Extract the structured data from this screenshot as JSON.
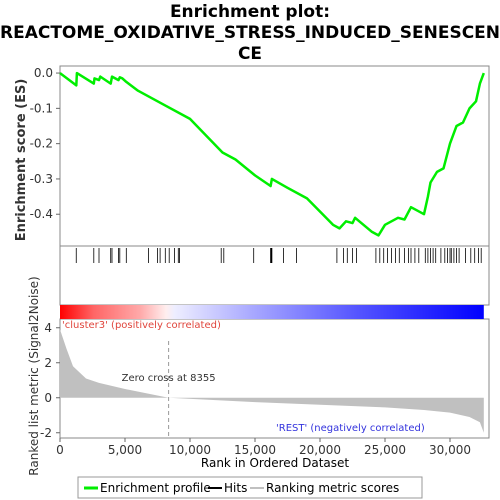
{
  "chart_data": {
    "type": "line",
    "title_lines": [
      "Enrichment plot:",
      "REACTOME_OXIDATIVE_STRESS_INDUCED_SENESCEN",
      "CE"
    ],
    "ylabel_top": "Enrichment score (ES)",
    "ylabel_bottom": "Ranked list metric (Signal2Noise)",
    "xlabel": "Rank in Ordered Dataset",
    "xlim": [
      0,
      33000
    ],
    "x_ticks": [
      0,
      5000,
      10000,
      15000,
      20000,
      25000,
      30000
    ],
    "x_tick_labels": [
      "0",
      "5,000",
      "10,000",
      "15,000",
      "20,000",
      "25,000",
      "30,000"
    ],
    "es_ylim": [
      -0.49,
      0.02
    ],
    "es_ticks": [
      0.0,
      -0.1,
      -0.2,
      -0.3,
      -0.4
    ],
    "es_tick_labels": [
      "0.0",
      "-0.1",
      "-0.2",
      "-0.3",
      "-0.4"
    ],
    "metric_ylim": [
      -2.3,
      4.5
    ],
    "metric_ticks": [
      4,
      2,
      0,
      -2
    ],
    "metric_tick_labels": [
      "4",
      "2",
      "0",
      "-2"
    ],
    "enrichment_profile": [
      [
        0,
        0.0
      ],
      [
        1250,
        -0.035
      ],
      [
        1300,
        0.0
      ],
      [
        2600,
        -0.03
      ],
      [
        2650,
        -0.015
      ],
      [
        3000,
        -0.02
      ],
      [
        3100,
        -0.01
      ],
      [
        3900,
        -0.03
      ],
      [
        4000,
        -0.01
      ],
      [
        4500,
        -0.02
      ],
      [
        4600,
        -0.012
      ],
      [
        4800,
        -0.015
      ],
      [
        5100,
        -0.025
      ],
      [
        6000,
        -0.05
      ],
      [
        8000,
        -0.09
      ],
      [
        10000,
        -0.13
      ],
      [
        12500,
        -0.225
      ],
      [
        13500,
        -0.245
      ],
      [
        15000,
        -0.29
      ],
      [
        16200,
        -0.32
      ],
      [
        16300,
        -0.3
      ],
      [
        17500,
        -0.325
      ],
      [
        19000,
        -0.355
      ],
      [
        21000,
        -0.43
      ],
      [
        21500,
        -0.44
      ],
      [
        22000,
        -0.42
      ],
      [
        22500,
        -0.425
      ],
      [
        22700,
        -0.41
      ],
      [
        24000,
        -0.45
      ],
      [
        24500,
        -0.46
      ],
      [
        25000,
        -0.43
      ],
      [
        26000,
        -0.41
      ],
      [
        26500,
        -0.415
      ],
      [
        27000,
        -0.38
      ],
      [
        28000,
        -0.4
      ],
      [
        28300,
        -0.35
      ],
      [
        28500,
        -0.31
      ],
      [
        29000,
        -0.28
      ],
      [
        29500,
        -0.27
      ],
      [
        30000,
        -0.2
      ],
      [
        30500,
        -0.15
      ],
      [
        31000,
        -0.14
      ],
      [
        31500,
        -0.1
      ],
      [
        32000,
        -0.08
      ],
      [
        32300,
        -0.03
      ],
      [
        32600,
        0.0
      ]
    ],
    "hit_ranks": [
      1250,
      2600,
      3000,
      3900,
      4000,
      4500,
      4600,
      5100,
      6800,
      7500,
      7700,
      8100,
      8400,
      8800,
      9100,
      9200,
      12400,
      12600,
      14900,
      16200,
      16250,
      16300,
      17200,
      18200,
      21300,
      21800,
      22100,
      22500,
      22800,
      24300,
      24600,
      24900,
      25200,
      25500,
      25800,
      26100,
      26500,
      26800,
      27000,
      27300,
      27600,
      28100,
      28300,
      28500,
      28700,
      28900,
      29300,
      29600,
      29800,
      30000,
      30100,
      30300,
      30500,
      30700,
      31200,
      31600,
      31900,
      32200,
      32400
    ],
    "ranking_metric_curve": [
      [
        0,
        3.9
      ],
      [
        500,
        2.8
      ],
      [
        1000,
        1.8
      ],
      [
        2000,
        1.1
      ],
      [
        3000,
        0.85
      ],
      [
        5000,
        0.5
      ],
      [
        8355,
        0.0
      ],
      [
        15000,
        -0.25
      ],
      [
        20000,
        -0.4
      ],
      [
        25000,
        -0.55
      ],
      [
        28000,
        -0.7
      ],
      [
        30000,
        -0.85
      ],
      [
        31500,
        -1.1
      ],
      [
        32300,
        -1.4
      ],
      [
        32600,
        -2.0
      ]
    ],
    "zero_cross_rank": 8355,
    "zero_cross_label": "Zero cross at 8355",
    "pos_label": "'cluster3' (positively correlated)",
    "neg_label": "'REST' (negatively correlated)",
    "legend": [
      "Enrichment profile",
      "Hits",
      "Ranking metric scores"
    ],
    "colors": {
      "profile": "#00ee00",
      "hits": "#000000",
      "metric_fill": "#c0c0c0",
      "pos_label": "#e0453c",
      "neg_label": "#3333dd",
      "bar_red": "#ff0000",
      "bar_blue": "#0000ff"
    }
  }
}
